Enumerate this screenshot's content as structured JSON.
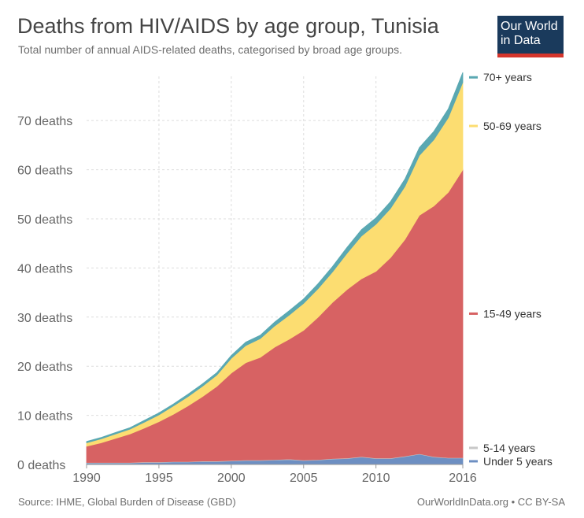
{
  "header": {
    "title": "Deaths from HIV/AIDS by age group, Tunisia",
    "subtitle": "Total number of annual AIDS-related deaths, categorised by broad age groups."
  },
  "logo": {
    "line1": "Our World",
    "line2": "in Data"
  },
  "footer": {
    "source": "Source: IHME, Global Burden of Disease (GBD)",
    "license": "OurWorldInData.org • CC BY-SA"
  },
  "chart_data": {
    "type": "area",
    "stacked": true,
    "title": "Deaths from HIV/AIDS by age group, Tunisia",
    "x": [
      1990,
      1991,
      1992,
      1993,
      1994,
      1995,
      1996,
      1997,
      1998,
      1999,
      2000,
      2001,
      2002,
      2003,
      2004,
      2005,
      2006,
      2007,
      2008,
      2009,
      2010,
      2011,
      2012,
      2013,
      2014,
      2015,
      2016
    ],
    "x_ticks": [
      1990,
      1995,
      2000,
      2005,
      2010,
      2016
    ],
    "y_ticks": [
      0,
      10,
      20,
      30,
      40,
      50,
      60,
      70
    ],
    "y_tick_suffix": " deaths",
    "ylim": [
      0,
      79
    ],
    "grid": true,
    "legend_placement": "right",
    "series": [
      {
        "name": "Under 5 years",
        "color": "#6d8fc2",
        "values": [
          0.3,
          0.3,
          0.3,
          0.3,
          0.4,
          0.4,
          0.5,
          0.5,
          0.6,
          0.6,
          0.7,
          0.8,
          0.8,
          0.9,
          1.0,
          0.8,
          0.9,
          1.1,
          1.2,
          1.5,
          1.2,
          1.2,
          1.6,
          2.1,
          1.5,
          1.3,
          1.3
        ]
      },
      {
        "name": "5-14 years",
        "color": "#c8c8c8",
        "values": [
          0.1,
          0.1,
          0.1,
          0.1,
          0.1,
          0.1,
          0.1,
          0.1,
          0.1,
          0.1,
          0.1,
          0.1,
          0.1,
          0.1,
          0.1,
          0.1,
          0.1,
          0.1,
          0.1,
          0.1,
          0.1,
          0.1,
          0.1,
          0.1,
          0.1,
          0.1,
          0.1
        ]
      },
      {
        "name": "15-49 years",
        "color": "#d76263",
        "values": [
          3.3,
          4.0,
          4.9,
          5.8,
          6.9,
          8.2,
          9.6,
          11.3,
          13.1,
          15.2,
          17.8,
          19.8,
          20.9,
          22.9,
          24.4,
          26.4,
          29.0,
          31.8,
          34.3,
          36.2,
          38.0,
          40.8,
          44.1,
          48.5,
          51.0,
          54.0,
          58.6
        ]
      },
      {
        "name": "50-69 years",
        "color": "#fcdd71",
        "values": [
          0.7,
          0.8,
          0.9,
          1.0,
          1.2,
          1.4,
          1.7,
          1.9,
          2.1,
          2.3,
          3.0,
          3.5,
          3.8,
          4.3,
          4.9,
          5.5,
          5.8,
          6.2,
          7.4,
          8.7,
          9.6,
          10.0,
          10.8,
          12.2,
          13.5,
          15.2,
          17.8
        ]
      },
      {
        "name": "70+ years",
        "color": "#5aa8b2",
        "values": [
          0.3,
          0.3,
          0.3,
          0.3,
          0.4,
          0.4,
          0.4,
          0.5,
          0.5,
          0.5,
          0.6,
          0.7,
          0.7,
          0.8,
          0.9,
          0.9,
          1.0,
          1.1,
          1.2,
          1.3,
          1.3,
          1.4,
          1.5,
          1.6,
          1.7,
          1.8,
          2.0
        ]
      }
    ]
  }
}
